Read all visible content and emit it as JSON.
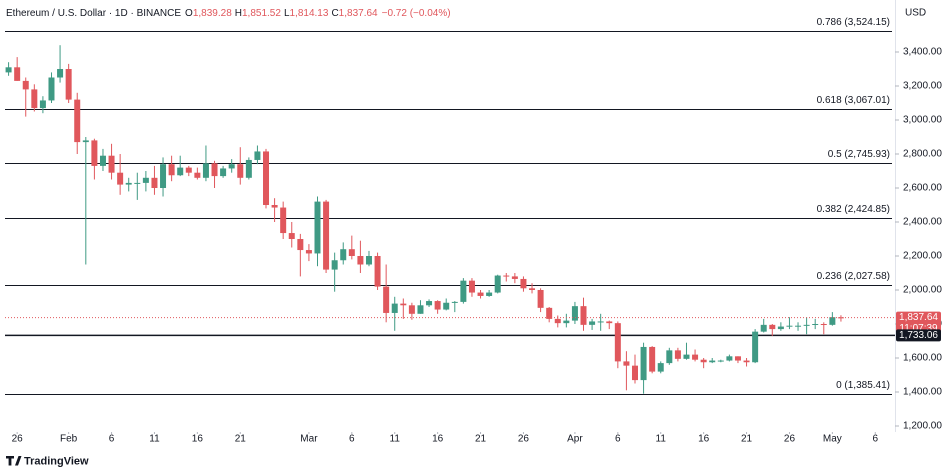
{
  "chart_data": {
    "type": "candlestick",
    "header": {
      "symbol": "Ethereum / U.S. Dollar · 1D · BINANCE",
      "fields": [
        {
          "label": "O",
          "value": "1,839.28"
        },
        {
          "label": "H",
          "value": "1,851.52"
        },
        {
          "label": "L",
          "value": "1,814.13"
        },
        {
          "label": "C",
          "value": "1,837.64"
        }
      ],
      "change": "−0.72 (−0.04%)"
    },
    "currency": "USD",
    "brand": "TradingView",
    "up_color": "#3f9a84",
    "down_color": "#e0575c",
    "open": [
      3280,
      3310,
      3230,
      3180,
      3070,
      3115,
      3250,
      3300,
      3120,
      2870,
      2880,
      2730,
      2790,
      2690,
      2620,
      2630,
      2630,
      2660,
      2600,
      2740,
      2675,
      2720,
      2690,
      2660,
      2745,
      2670,
      2715,
      2740,
      2660,
      2765,
      2815,
      2500,
      2485,
      2335,
      2300,
      2235,
      2215,
      2520,
      2120,
      2175,
      2240,
      2200,
      2150,
      2200,
      2020,
      1865,
      1920,
      1910,
      1860,
      1910,
      1935,
      1885,
      1925,
      1930,
      2055,
      1985,
      1965,
      1985,
      2085,
      2080,
      2065,
      2010,
      2000,
      1895,
      1830,
      1805,
      1820,
      1905,
      1795,
      1815,
      1815,
      1805,
      1580,
      1555,
      1470,
      1665,
      1520,
      1570,
      1645,
      1595,
      1620,
      1590,
      1575,
      1585,
      1585,
      1610,
      1585,
      1575,
      1755,
      1795,
      1770,
      1785,
      1790,
      1790,
      1795,
      1800,
      1795,
      1839.28
    ],
    "high": [
      3340,
      3370,
      3250,
      3210,
      3140,
      3280,
      3440,
      3330,
      3160,
      2900,
      2890,
      2830,
      2860,
      2800,
      2660,
      2690,
      2700,
      2730,
      2780,
      2790,
      2790,
      2730,
      2720,
      2850,
      2760,
      2730,
      2770,
      2840,
      2780,
      2850,
      2830,
      2540,
      2520,
      2400,
      2330,
      2270,
      2550,
      2530,
      2220,
      2280,
      2320,
      2290,
      2230,
      2220,
      2150,
      1960,
      1950,
      1925,
      1940,
      1945,
      1940,
      1950,
      1935,
      2070,
      2070,
      2000,
      2000,
      2090,
      2100,
      2100,
      2080,
      2040,
      2010,
      1900,
      1850,
      1860,
      1930,
      1955,
      1830,
      1860,
      1820,
      1815,
      1640,
      1620,
      1690,
      1670,
      1580,
      1660,
      1660,
      1690,
      1650,
      1600,
      1600,
      1590,
      1620,
      1610,
      1600,
      1770,
      1830,
      1800,
      1810,
      1840,
      1810,
      1840,
      1830,
      1810,
      1870,
      1851.52
    ],
    "low": [
      3260,
      3230,
      3020,
      3050,
      3040,
      3100,
      3220,
      3100,
      2800,
      2150,
      2650,
      2700,
      2650,
      2560,
      2580,
      2530,
      2580,
      2560,
      2550,
      2640,
      2670,
      2670,
      2650,
      2640,
      2600,
      2660,
      2690,
      2620,
      2650,
      2740,
      2480,
      2400,
      2300,
      2250,
      2080,
      2170,
      2140,
      2100,
      1990,
      2150,
      2180,
      2100,
      2140,
      2000,
      1810,
      1760,
      1830,
      1825,
      1860,
      1900,
      1860,
      1880,
      1870,
      1920,
      1960,
      1950,
      1960,
      1980,
      2050,
      2040,
      1990,
      1980,
      1870,
      1810,
      1780,
      1780,
      1800,
      1760,
      1765,
      1760,
      1770,
      1540,
      1410,
      1450,
      1390,
      1510,
      1510,
      1560,
      1580,
      1590,
      1580,
      1540,
      1570,
      1575,
      1580,
      1570,
      1550,
      1570,
      1750,
      1730,
      1760,
      1770,
      1760,
      1740,
      1770,
      1740,
      1790,
      1814.13
    ],
    "close": [
      3310,
      3230,
      3180,
      3070,
      3115,
      3250,
      3300,
      3120,
      2870,
      2880,
      2730,
      2790,
      2690,
      2620,
      2630,
      2630,
      2660,
      2600,
      2740,
      2675,
      2720,
      2690,
      2660,
      2745,
      2670,
      2715,
      2740,
      2660,
      2765,
      2815,
      2500,
      2485,
      2335,
      2300,
      2235,
      2215,
      2520,
      2120,
      2175,
      2240,
      2200,
      2150,
      2200,
      2020,
      1865,
      1920,
      1910,
      1860,
      1910,
      1935,
      1885,
      1925,
      1930,
      2055,
      1985,
      1965,
      1985,
      2085,
      2080,
      2065,
      2010,
      2000,
      1895,
      1830,
      1805,
      1820,
      1905,
      1795,
      1815,
      1815,
      1805,
      1580,
      1555,
      1470,
      1665,
      1520,
      1570,
      1645,
      1595,
      1620,
      1590,
      1575,
      1585,
      1585,
      1610,
      1585,
      1575,
      1755,
      1795,
      1770,
      1785,
      1790,
      1790,
      1795,
      1800,
      1795,
      1840,
      1837.64
    ],
    "xlim": [
      -1,
      103.3
    ],
    "xticks": [
      {
        "value": 1,
        "label": "26"
      },
      {
        "value": 7,
        "label": "Feb"
      },
      {
        "value": 12,
        "label": "6"
      },
      {
        "value": 17,
        "label": "11"
      },
      {
        "value": 22,
        "label": "16"
      },
      {
        "value": 27,
        "label": "21"
      },
      {
        "value": 35,
        "label": "Mar"
      },
      {
        "value": 40,
        "label": "6"
      },
      {
        "value": 45,
        "label": "11"
      },
      {
        "value": 50,
        "label": "16"
      },
      {
        "value": 55,
        "label": "21"
      },
      {
        "value": 60,
        "label": "26"
      },
      {
        "value": 66,
        "label": "Apr"
      },
      {
        "value": 71,
        "label": "6"
      },
      {
        "value": 76,
        "label": "11"
      },
      {
        "value": 81,
        "label": "16"
      },
      {
        "value": 86,
        "label": "21"
      },
      {
        "value": 91,
        "label": "26"
      },
      {
        "value": 96,
        "label": "May"
      },
      {
        "value": 101,
        "label": "6"
      }
    ],
    "ylim": [
      1150,
      3650
    ],
    "yticks": [
      {
        "value": 1200,
        "label": "1,200.00"
      },
      {
        "value": 1400,
        "label": "1,400.00"
      },
      {
        "value": 1600,
        "label": "1,600.00"
      },
      {
        "value": 1800,
        "label": "1,800.00"
      },
      {
        "value": 2000,
        "label": "2,000.00"
      },
      {
        "value": 2200,
        "label": "2,200.00"
      },
      {
        "value": 2400,
        "label": "2,400.00"
      },
      {
        "value": 2600,
        "label": "2,600.00"
      },
      {
        "value": 2800,
        "label": "2,800.00"
      },
      {
        "value": 3000,
        "label": "3,000.00"
      },
      {
        "value": 3200,
        "label": "3,200.00"
      },
      {
        "value": 3400,
        "label": "3,400.00"
      }
    ],
    "fib_levels": [
      {
        "value": 3524.15,
        "label": "0.786 (3,524.15)"
      },
      {
        "value": 3067.01,
        "label": "0.618 (3,067.01)"
      },
      {
        "value": 2745.93,
        "label": "0.5 (2,745.93)"
      },
      {
        "value": 2424.85,
        "label": "0.382 (2,424.85)"
      },
      {
        "value": 2027.58,
        "label": "0.236 (2,027.58)"
      },
      {
        "value": 1385.41,
        "label": "0 (1,385.41)"
      }
    ],
    "support": {
      "value": 1733.06,
      "label": "1,733.06"
    },
    "last_price": {
      "value": 1837.64,
      "label": "1,837.64",
      "countdown": "11:07:39"
    }
  }
}
